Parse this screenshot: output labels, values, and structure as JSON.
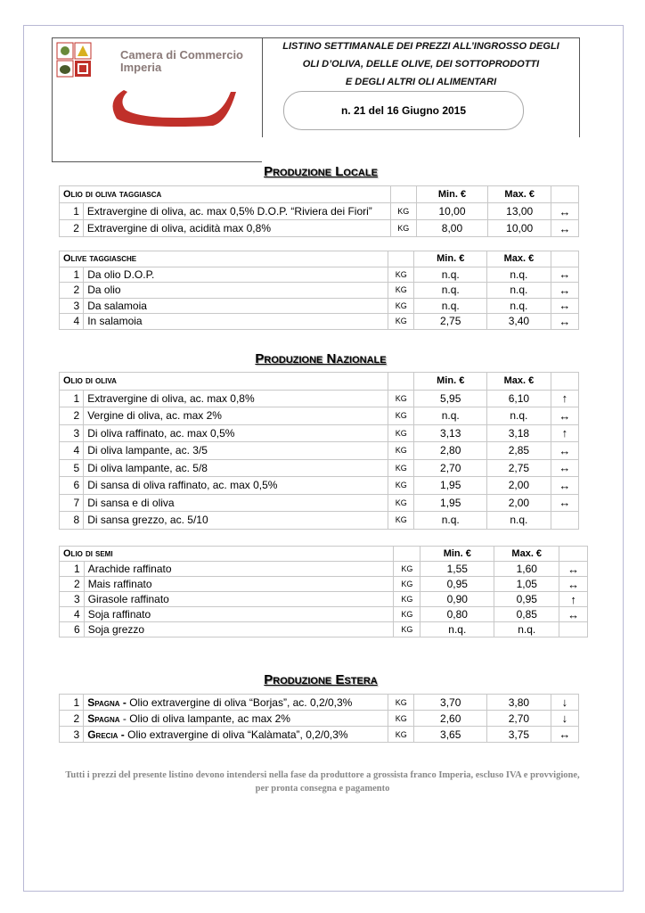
{
  "header": {
    "logo_text_1": "Camera di Commercio",
    "logo_text_2": "Imperia",
    "title_1": "LISTINO SETTIMANALE DEI PREZZI ALL’INGROSSO DEGLI",
    "title_2": "OLI D’OLIVA,  DELLE OLIVE, DEI SOTTOPRODOTTI",
    "title_3": "E DEGLI ALTRI OLI ALIMENTARI",
    "issue": "n. 21 del 16 Giugno  2015"
  },
  "sections": {
    "locale": "Produzione  Locale",
    "nazionale": "Produzione  Nazionale",
    "estera": "Produzione Estera"
  },
  "tables": [
    {
      "title": "Olio di oliva taggiasca",
      "min": "Min. €",
      "max": "Max. €",
      "rows": [
        [
          "1",
          "Extravergine di oliva, ac. max 0,5% D.O.P. “Riviera dei Fiori”",
          "KG",
          "10,00",
          "13,00",
          "↔"
        ],
        [
          "2",
          "Extravergine di oliva, acidità  max 0,8%",
          "KG",
          "8,00",
          "10,00",
          "↔"
        ]
      ]
    },
    {
      "title": "Olive taggiasche",
      "min": "Min. €",
      "max": "Max. €",
      "rows": [
        [
          "1",
          "Da olio D.O.P.",
          "KG",
          "n.q.",
          "n.q.",
          "↔"
        ],
        [
          "2",
          "Da olio",
          "KG",
          "n.q.",
          "n.q.",
          "↔"
        ],
        [
          "3",
          "Da salamoia",
          "KG",
          "n.q.",
          "n.q.",
          "↔"
        ],
        [
          "4",
          "In salamoia",
          "KG",
          "2,75",
          "3,40",
          "↔"
        ]
      ]
    },
    {
      "title": "Olio di oliva",
      "min": "Min. €",
      "max": "Max. €",
      "rows": [
        [
          "1",
          "Extravergine di oliva, ac. max 0,8%",
          "KG",
          "5,95",
          "6,10",
          "↑"
        ],
        [
          "2",
          "Vergine di oliva, ac. max  2%",
          "KG",
          "n.q.",
          "n.q.",
          "↔"
        ],
        [
          "3",
          "Di oliva raffinato, ac. max 0,5%",
          "KG",
          "3,13",
          "3,18",
          "↑"
        ],
        [
          "4",
          "Di oliva lampante, ac. 3/5",
          "KG",
          "2,80",
          "2,85",
          "↔"
        ],
        [
          "5",
          "Di oliva lampante, ac. 5/8",
          "KG",
          "2,70",
          "2,75",
          "↔"
        ],
        [
          "6",
          "Di sansa di oliva raffinato, ac. max 0,5%",
          "KG",
          "1,95",
          "2,00",
          "↔"
        ],
        [
          "7",
          "Di sansa e di oliva",
          "KG",
          "1,95",
          "2,00",
          "↔"
        ],
        [
          "8",
          "Di sansa grezzo, ac. 5/10",
          "KG",
          "n.q.",
          "n.q.",
          ""
        ]
      ]
    },
    {
      "title": "Olio di semi",
      "min": "Min. €",
      "max": "Max. €",
      "rows": [
        [
          "1",
          "Arachide raffinato",
          "KG",
          "1,55",
          "1,60",
          "↔"
        ],
        [
          "2",
          "Mais raffinato",
          "KG",
          "0,95",
          "1,05",
          "↔"
        ],
        [
          "3",
          "Girasole  raffinato",
          "KG",
          "0,90",
          "0,95",
          "↑"
        ],
        [
          "4",
          "Soja raffinato",
          "KG",
          "0,80",
          "0,85",
          "↔"
        ],
        [
          "6",
          "Soja grezzo",
          "KG",
          "n.q.",
          "n.q.",
          ""
        ]
      ]
    },
    {
      "title": "",
      "rows": [
        [
          "1",
          "Olio extravergine di oliva “Borjas”, ac. 0,2/0,3%",
          "KG",
          "3,70",
          "3,80",
          "↓",
          "Spagna -"
        ],
        [
          "2",
          "- Olio di oliva lampante, ac max 2%",
          "KG",
          "2,60",
          "2,70",
          "↓",
          "Spagna "
        ],
        [
          "3",
          "Olio extravergine di oliva “Kalàmata”, 0,2/0,3%",
          "KG",
          "3,65",
          "3,75",
          "↔",
          "Grecia - "
        ]
      ]
    }
  ],
  "footer": "Tutti i prezzi del presente listino devono intendersi nella fase da produttore a grossista franco Imperia, escluso IVA e provvigione, per pronta consegna e pagamento",
  "colors": {
    "logo_red": "#c0302a",
    "logo_text": "#8a7a78"
  }
}
